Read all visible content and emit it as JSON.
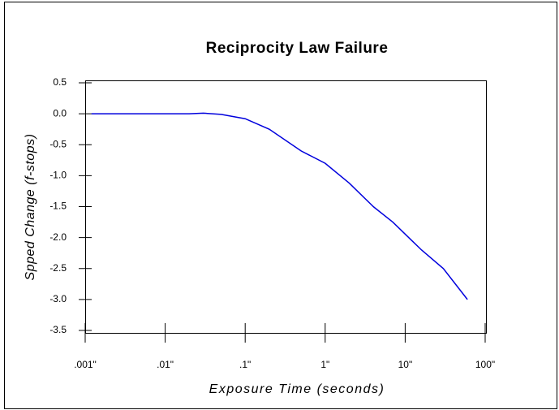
{
  "chart_data": {
    "type": "line",
    "title": "Reciprocity Law Failure",
    "x_label": "Exposure Time (seconds)",
    "y_label": "Spped Change (f-stops)",
    "x_scale": "log",
    "xlim": [
      0.001,
      100
    ],
    "xticks": [
      {
        "value": 0.001,
        "label": ".001\""
      },
      {
        "value": 0.01,
        "label": ".01\""
      },
      {
        "value": 0.1,
        "label": ".1\""
      },
      {
        "value": 1,
        "label": "1\""
      },
      {
        "value": 10,
        "label": "10\""
      },
      {
        "value": 100,
        "label": "100\""
      }
    ],
    "ylim": [
      -3.5,
      0.5
    ],
    "yticks": [
      0.5,
      {
        "value": 0,
        "label": "0.0"
      },
      -0.5,
      {
        "value": -1,
        "label": "-1.0"
      },
      -1.5,
      {
        "value": -2,
        "label": "-2.0"
      },
      -2.5,
      {
        "value": -3,
        "label": "-3.0"
      },
      -3.5
    ],
    "series": [
      {
        "color": "#0000dd",
        "x": [
          0.0012,
          0.02,
          0.03,
          0.05,
          0.1,
          0.2,
          0.5,
          1,
          2,
          4,
          7,
          16,
          30,
          60
        ],
        "values": [
          0,
          0,
          0.01,
          -0.01,
          -0.08,
          -0.25,
          -0.6,
          -0.8,
          -1.12,
          -1.5,
          -1.75,
          -2.2,
          -2.5,
          -3.0
        ]
      }
    ]
  }
}
